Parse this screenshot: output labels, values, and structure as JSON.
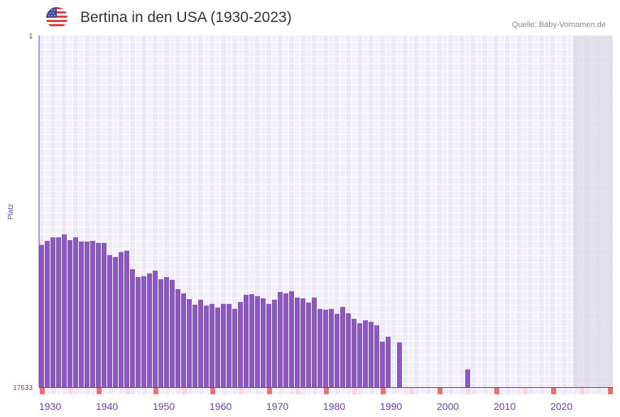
{
  "header": {
    "title": "Bertina in den USA (1930-2023)",
    "source": "Quelle: Baby-Vornamen.de",
    "flag_icon": "us-flag-icon"
  },
  "colors": {
    "bar": "#8e54c8",
    "axis": "#5b3a9a",
    "decade_marker": "#e8727a",
    "half_decade_marker": "#f6d6df",
    "future_shade": "#ddd8e6"
  },
  "chart_data": {
    "type": "bar",
    "title": "Bertina in den USA (1930-2023)",
    "xlabel": "",
    "ylabel": "Platz",
    "y_reversed": true,
    "ylim": [
      1,
      17633
    ],
    "y_tick_labels": [
      "1",
      "17633"
    ],
    "xlim": [
      1930,
      2030
    ],
    "x_tick_labels": [
      "1930",
      "1940",
      "1950",
      "1960",
      "1970",
      "1980",
      "1990",
      "2000",
      "2010",
      "2020"
    ],
    "future_from": 2024,
    "grid": true,
    "years": [
      1930,
      1931,
      1932,
      1933,
      1934,
      1935,
      1936,
      1937,
      1938,
      1939,
      1940,
      1941,
      1942,
      1943,
      1944,
      1945,
      1946,
      1947,
      1948,
      1949,
      1950,
      1951,
      1952,
      1953,
      1954,
      1955,
      1956,
      1957,
      1958,
      1959,
      1960,
      1961,
      1962,
      1963,
      1964,
      1965,
      1966,
      1967,
      1968,
      1969,
      1970,
      1971,
      1972,
      1973,
      1974,
      1975,
      1976,
      1977,
      1978,
      1979,
      1980,
      1981,
      1982,
      1983,
      1984,
      1985,
      1986,
      1987,
      1988,
      1989,
      1990,
      1991,
      1993,
      2005
    ],
    "ranks": [
      10500,
      10300,
      10120,
      10120,
      9970,
      10260,
      10120,
      10330,
      10330,
      10300,
      10400,
      10400,
      11010,
      11110,
      10860,
      10790,
      11720,
      12110,
      12070,
      11930,
      11790,
      12220,
      12110,
      12250,
      12720,
      12930,
      13220,
      13500,
      13250,
      13540,
      13460,
      13640,
      13460,
      13460,
      13710,
      13360,
      13000,
      12970,
      13070,
      13180,
      13460,
      13250,
      12860,
      12930,
      12820,
      13140,
      13180,
      13390,
      13140,
      13710,
      13750,
      13710,
      13960,
      13610,
      13930,
      14210,
      14430,
      14280,
      14360,
      14530,
      15350,
      15100,
      15390,
      16740
    ]
  }
}
